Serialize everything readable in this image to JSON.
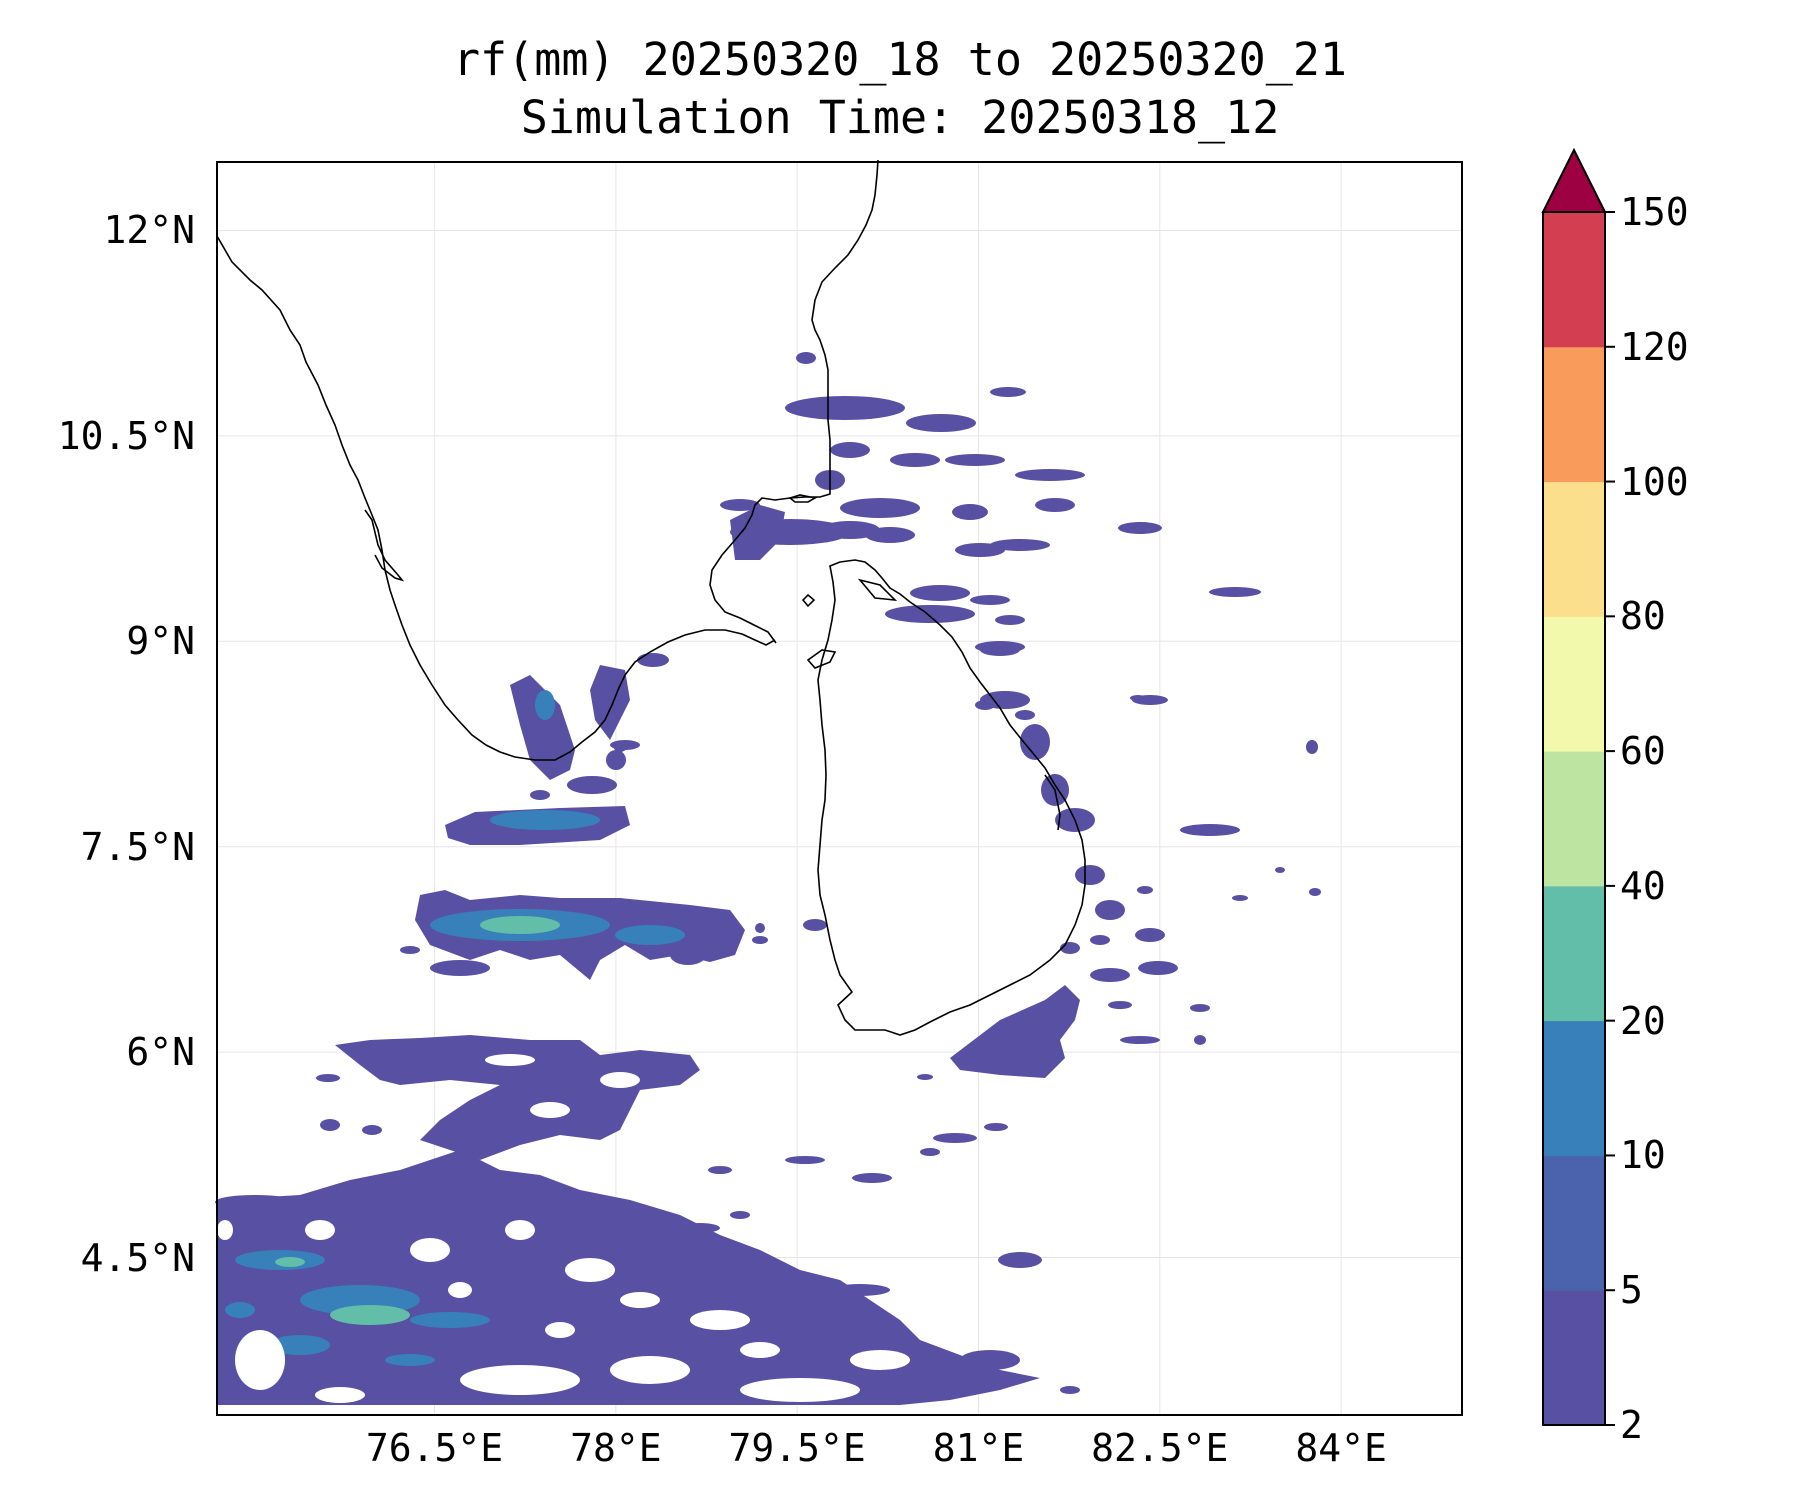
{
  "title_line1": "rf(mm) 20250320_18 to 20250320_21",
  "title_line2": "Simulation Time: 20250318_12",
  "map": {
    "lon_range": [
      74.7,
      85.0
    ],
    "lat_range": [
      3.35,
      12.5
    ],
    "gridlines": true,
    "lon_ticks": [
      {
        "value": 76.5,
        "label": "76.5°E"
      },
      {
        "value": 78.0,
        "label": "78°E"
      },
      {
        "value": 79.5,
        "label": "79.5°E"
      },
      {
        "value": 81.0,
        "label": "81°E"
      },
      {
        "value": 82.5,
        "label": "82.5°E"
      },
      {
        "value": 84.0,
        "label": "84°E"
      }
    ],
    "lat_ticks": [
      {
        "value": 12.0,
        "label": "12°N"
      },
      {
        "value": 10.5,
        "label": "10.5°N"
      },
      {
        "value": 9.0,
        "label": "9°N"
      },
      {
        "value": 7.5,
        "label": "7.5°N"
      },
      {
        "value": 6.0,
        "label": "6°N"
      },
      {
        "value": 4.5,
        "label": "4.5°N"
      }
    ]
  },
  "colorbar": {
    "levels": [
      {
        "value": 2,
        "label": "2"
      },
      {
        "value": 5,
        "label": "5"
      },
      {
        "value": 10,
        "label": "10"
      },
      {
        "value": 20,
        "label": "20"
      },
      {
        "value": 40,
        "label": "40"
      },
      {
        "value": 60,
        "label": "60"
      },
      {
        "value": 80,
        "label": "80"
      },
      {
        "value": 100,
        "label": "100"
      },
      {
        "value": 120,
        "label": "120"
      },
      {
        "value": 150,
        "label": "150"
      }
    ],
    "colors": [
      "#5850a3",
      "#4b62ad",
      "#3880ba",
      "#62bda9",
      "#bde4a0",
      "#f2f9ac",
      "#fbdf8c",
      "#f99b5a",
      "#d33e50"
    ],
    "extend_color": "#9e0142",
    "extend": "max"
  },
  "rain_colors": {
    "low": "#5850a3",
    "mid": "#3880ba",
    "high": "#62bda9"
  }
}
